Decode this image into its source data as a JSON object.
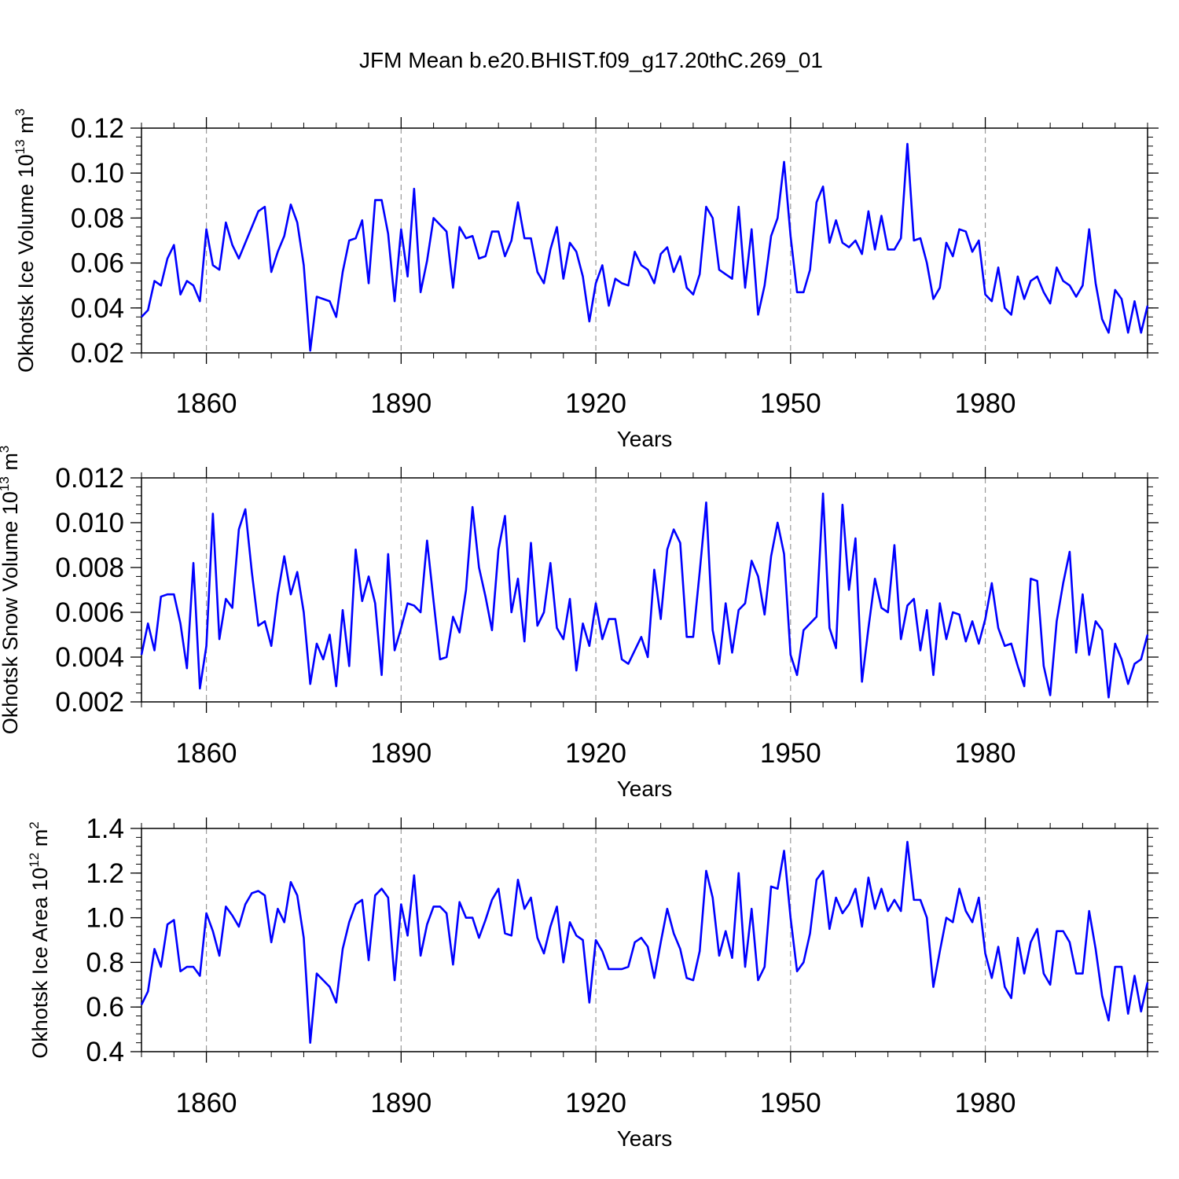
{
  "title": "JFM Mean b.e20.BHIST.f09_g17.20thC.269_01",
  "colors": {
    "line": "#0000ff",
    "axis": "#000000",
    "grid": "#999999"
  },
  "chart_data": [
    {
      "type": "line",
      "id": "ice-volume",
      "xlabel": "Years",
      "ylabel": {
        "main": "Okhotsk Ice Volume 10",
        "exp": "13",
        "unit": " m",
        "unit_exp": "3"
      },
      "ylim": [
        0.02,
        0.12
      ],
      "xlim": [
        1850,
        2005
      ],
      "yticks": [
        0.02,
        0.04,
        0.06,
        0.08,
        0.1,
        0.12
      ],
      "ytick_labels": [
        "0.02",
        "0.04",
        "0.06",
        "0.08",
        "0.10",
        "0.12"
      ],
      "xticks": [
        1860,
        1890,
        1920,
        1950,
        1980
      ],
      "xtick_labels": [
        "1860",
        "1890",
        "1920",
        "1950",
        "1980"
      ],
      "grid": "vertical dashed at major x ticks",
      "x_start": 1850,
      "values": [
        0.036,
        0.039,
        0.052,
        0.05,
        0.062,
        0.068,
        0.046,
        0.052,
        0.05,
        0.043,
        0.075,
        0.059,
        0.057,
        0.078,
        0.068,
        0.062,
        0.069,
        0.076,
        0.083,
        0.085,
        0.056,
        0.065,
        0.072,
        0.086,
        0.078,
        0.059,
        0.021,
        0.045,
        0.044,
        0.043,
        0.036,
        0.056,
        0.07,
        0.071,
        0.079,
        0.051,
        0.088,
        0.088,
        0.073,
        0.043,
        0.075,
        0.054,
        0.093,
        0.047,
        0.061,
        0.08,
        0.077,
        0.074,
        0.049,
        0.076,
        0.071,
        0.072,
        0.062,
        0.063,
        0.074,
        0.074,
        0.063,
        0.07,
        0.087,
        0.071,
        0.071,
        0.056,
        0.051,
        0.066,
        0.076,
        0.053,
        0.069,
        0.065,
        0.054,
        0.034,
        0.051,
        0.059,
        0.041,
        0.053,
        0.051,
        0.05,
        0.065,
        0.059,
        0.057,
        0.051,
        0.064,
        0.067,
        0.056,
        0.063,
        0.049,
        0.046,
        0.055,
        0.085,
        0.08,
        0.057,
        0.055,
        0.053,
        0.085,
        0.049,
        0.075,
        0.037,
        0.05,
        0.072,
        0.08,
        0.105,
        0.072,
        0.047,
        0.047,
        0.057,
        0.087,
        0.094,
        0.069,
        0.079,
        0.069,
        0.067,
        0.07,
        0.064,
        0.083,
        0.066,
        0.081,
        0.066,
        0.066,
        0.071,
        0.113,
        0.07,
        0.071,
        0.06,
        0.044,
        0.049,
        0.069,
        0.063,
        0.075,
        0.074,
        0.065,
        0.07,
        0.046,
        0.043,
        0.058,
        0.04,
        0.037,
        0.054,
        0.044,
        0.052,
        0.054,
        0.047,
        0.042,
        0.058,
        0.052,
        0.05,
        0.045,
        0.05,
        0.075,
        0.051,
        0.035,
        0.029,
        0.048,
        0.044,
        0.029,
        0.043,
        0.029,
        0.041
      ]
    },
    {
      "type": "line",
      "id": "snow-volume",
      "xlabel": "Years",
      "ylabel": {
        "main": "Okhotsk Snow Volume 10",
        "exp": "13",
        "unit": " m",
        "unit_exp": "3"
      },
      "ylim": [
        0.002,
        0.012
      ],
      "xlim": [
        1850,
        2005
      ],
      "yticks": [
        0.002,
        0.004,
        0.006,
        0.008,
        0.01,
        0.012
      ],
      "ytick_labels": [
        "0.002",
        "0.004",
        "0.006",
        "0.008",
        "0.010",
        "0.012"
      ],
      "xticks": [
        1860,
        1890,
        1920,
        1950,
        1980
      ],
      "xtick_labels": [
        "1860",
        "1890",
        "1920",
        "1950",
        "1980"
      ],
      "grid": "vertical dashed at major x ticks",
      "x_start": 1850,
      "values": [
        0.0041,
        0.0055,
        0.0043,
        0.0067,
        0.0068,
        0.0068,
        0.0055,
        0.0035,
        0.0082,
        0.0026,
        0.0045,
        0.0104,
        0.0048,
        0.0066,
        0.0062,
        0.0097,
        0.0106,
        0.0078,
        0.0054,
        0.0056,
        0.0045,
        0.0068,
        0.0085,
        0.0068,
        0.0078,
        0.006,
        0.0028,
        0.0046,
        0.0039,
        0.005,
        0.0027,
        0.0061,
        0.0036,
        0.0088,
        0.0065,
        0.0076,
        0.0064,
        0.0032,
        0.0086,
        0.0043,
        0.0053,
        0.0064,
        0.0063,
        0.006,
        0.0092,
        0.0065,
        0.0039,
        0.004,
        0.0058,
        0.0051,
        0.007,
        0.0107,
        0.008,
        0.0067,
        0.0052,
        0.0088,
        0.0103,
        0.006,
        0.0075,
        0.0047,
        0.0091,
        0.0054,
        0.006,
        0.0082,
        0.0053,
        0.0048,
        0.0066,
        0.0034,
        0.0055,
        0.0045,
        0.0064,
        0.0048,
        0.0057,
        0.0057,
        0.0039,
        0.0037,
        0.0043,
        0.0049,
        0.004,
        0.0079,
        0.0057,
        0.0088,
        0.0097,
        0.0091,
        0.0049,
        0.0049,
        0.0078,
        0.0109,
        0.0052,
        0.0037,
        0.0064,
        0.0042,
        0.0061,
        0.0064,
        0.0083,
        0.0076,
        0.0059,
        0.0085,
        0.01,
        0.0086,
        0.0041,
        0.0032,
        0.0052,
        0.0055,
        0.0058,
        0.0113,
        0.0053,
        0.0044,
        0.0108,
        0.007,
        0.0093,
        0.0029,
        0.0053,
        0.0075,
        0.0062,
        0.006,
        0.009,
        0.0048,
        0.0063,
        0.0066,
        0.0043,
        0.0061,
        0.0032,
        0.0064,
        0.0048,
        0.006,
        0.0059,
        0.0047,
        0.0056,
        0.0046,
        0.0057,
        0.0073,
        0.0053,
        0.0045,
        0.0046,
        0.0036,
        0.0027,
        0.0075,
        0.0074,
        0.0036,
        0.0023,
        0.0056,
        0.0073,
        0.0087,
        0.0042,
        0.0068,
        0.0041,
        0.0056,
        0.0052,
        0.0022,
        0.0046,
        0.0039,
        0.0028,
        0.0037,
        0.0039,
        0.005
      ]
    },
    {
      "type": "line",
      "id": "ice-area",
      "xlabel": "Years",
      "ylabel": {
        "main": "Okhotsk Ice Area 10",
        "exp": "12",
        "unit": " m",
        "unit_exp": "2"
      },
      "ylim": [
        0.4,
        1.4
      ],
      "xlim": [
        1850,
        2005
      ],
      "yticks": [
        0.4,
        0.6,
        0.8,
        1.0,
        1.2,
        1.4
      ],
      "ytick_labels": [
        "0.4",
        "0.6",
        "0.8",
        "1.0",
        "1.2",
        "1.4"
      ],
      "xticks": [
        1860,
        1890,
        1920,
        1950,
        1980
      ],
      "xtick_labels": [
        "1860",
        "1890",
        "1920",
        "1950",
        "1980"
      ],
      "grid": "vertical dashed at major x ticks",
      "x_start": 1850,
      "values": [
        0.61,
        0.67,
        0.86,
        0.78,
        0.97,
        0.99,
        0.76,
        0.78,
        0.78,
        0.74,
        1.02,
        0.94,
        0.83,
        1.05,
        1.01,
        0.96,
        1.06,
        1.11,
        1.12,
        1.1,
        0.89,
        1.04,
        0.98,
        1.16,
        1.1,
        0.91,
        0.44,
        0.75,
        0.72,
        0.69,
        0.62,
        0.86,
        0.98,
        1.06,
        1.08,
        0.81,
        1.1,
        1.13,
        1.09,
        0.72,
        1.06,
        0.92,
        1.19,
        0.83,
        0.97,
        1.05,
        1.05,
        1.02,
        0.79,
        1.07,
        1.0,
        1.0,
        0.91,
        0.99,
        1.08,
        1.13,
        0.93,
        0.92,
        1.17,
        1.04,
        1.09,
        0.91,
        0.84,
        0.96,
        1.05,
        0.8,
        0.98,
        0.92,
        0.9,
        0.62,
        0.9,
        0.85,
        0.77,
        0.77,
        0.77,
        0.78,
        0.89,
        0.91,
        0.87,
        0.73,
        0.89,
        1.04,
        0.93,
        0.86,
        0.73,
        0.72,
        0.85,
        1.21,
        1.09,
        0.83,
        0.94,
        0.82,
        1.2,
        0.78,
        1.04,
        0.72,
        0.78,
        1.14,
        1.13,
        1.3,
        1.0,
        0.76,
        0.8,
        0.93,
        1.17,
        1.21,
        0.95,
        1.09,
        1.02,
        1.06,
        1.13,
        0.96,
        1.18,
        1.04,
        1.13,
        1.03,
        1.08,
        1.03,
        1.34,
        1.08,
        1.08,
        1.0,
        0.69,
        0.85,
        1.0,
        0.98,
        1.13,
        1.03,
        0.98,
        1.09,
        0.84,
        0.73,
        0.87,
        0.69,
        0.64,
        0.91,
        0.75,
        0.89,
        0.95,
        0.75,
        0.7,
        0.94,
        0.94,
        0.89,
        0.75,
        0.75,
        1.03,
        0.86,
        0.65,
        0.54,
        0.78,
        0.78,
        0.57,
        0.74,
        0.58,
        0.71
      ]
    }
  ]
}
